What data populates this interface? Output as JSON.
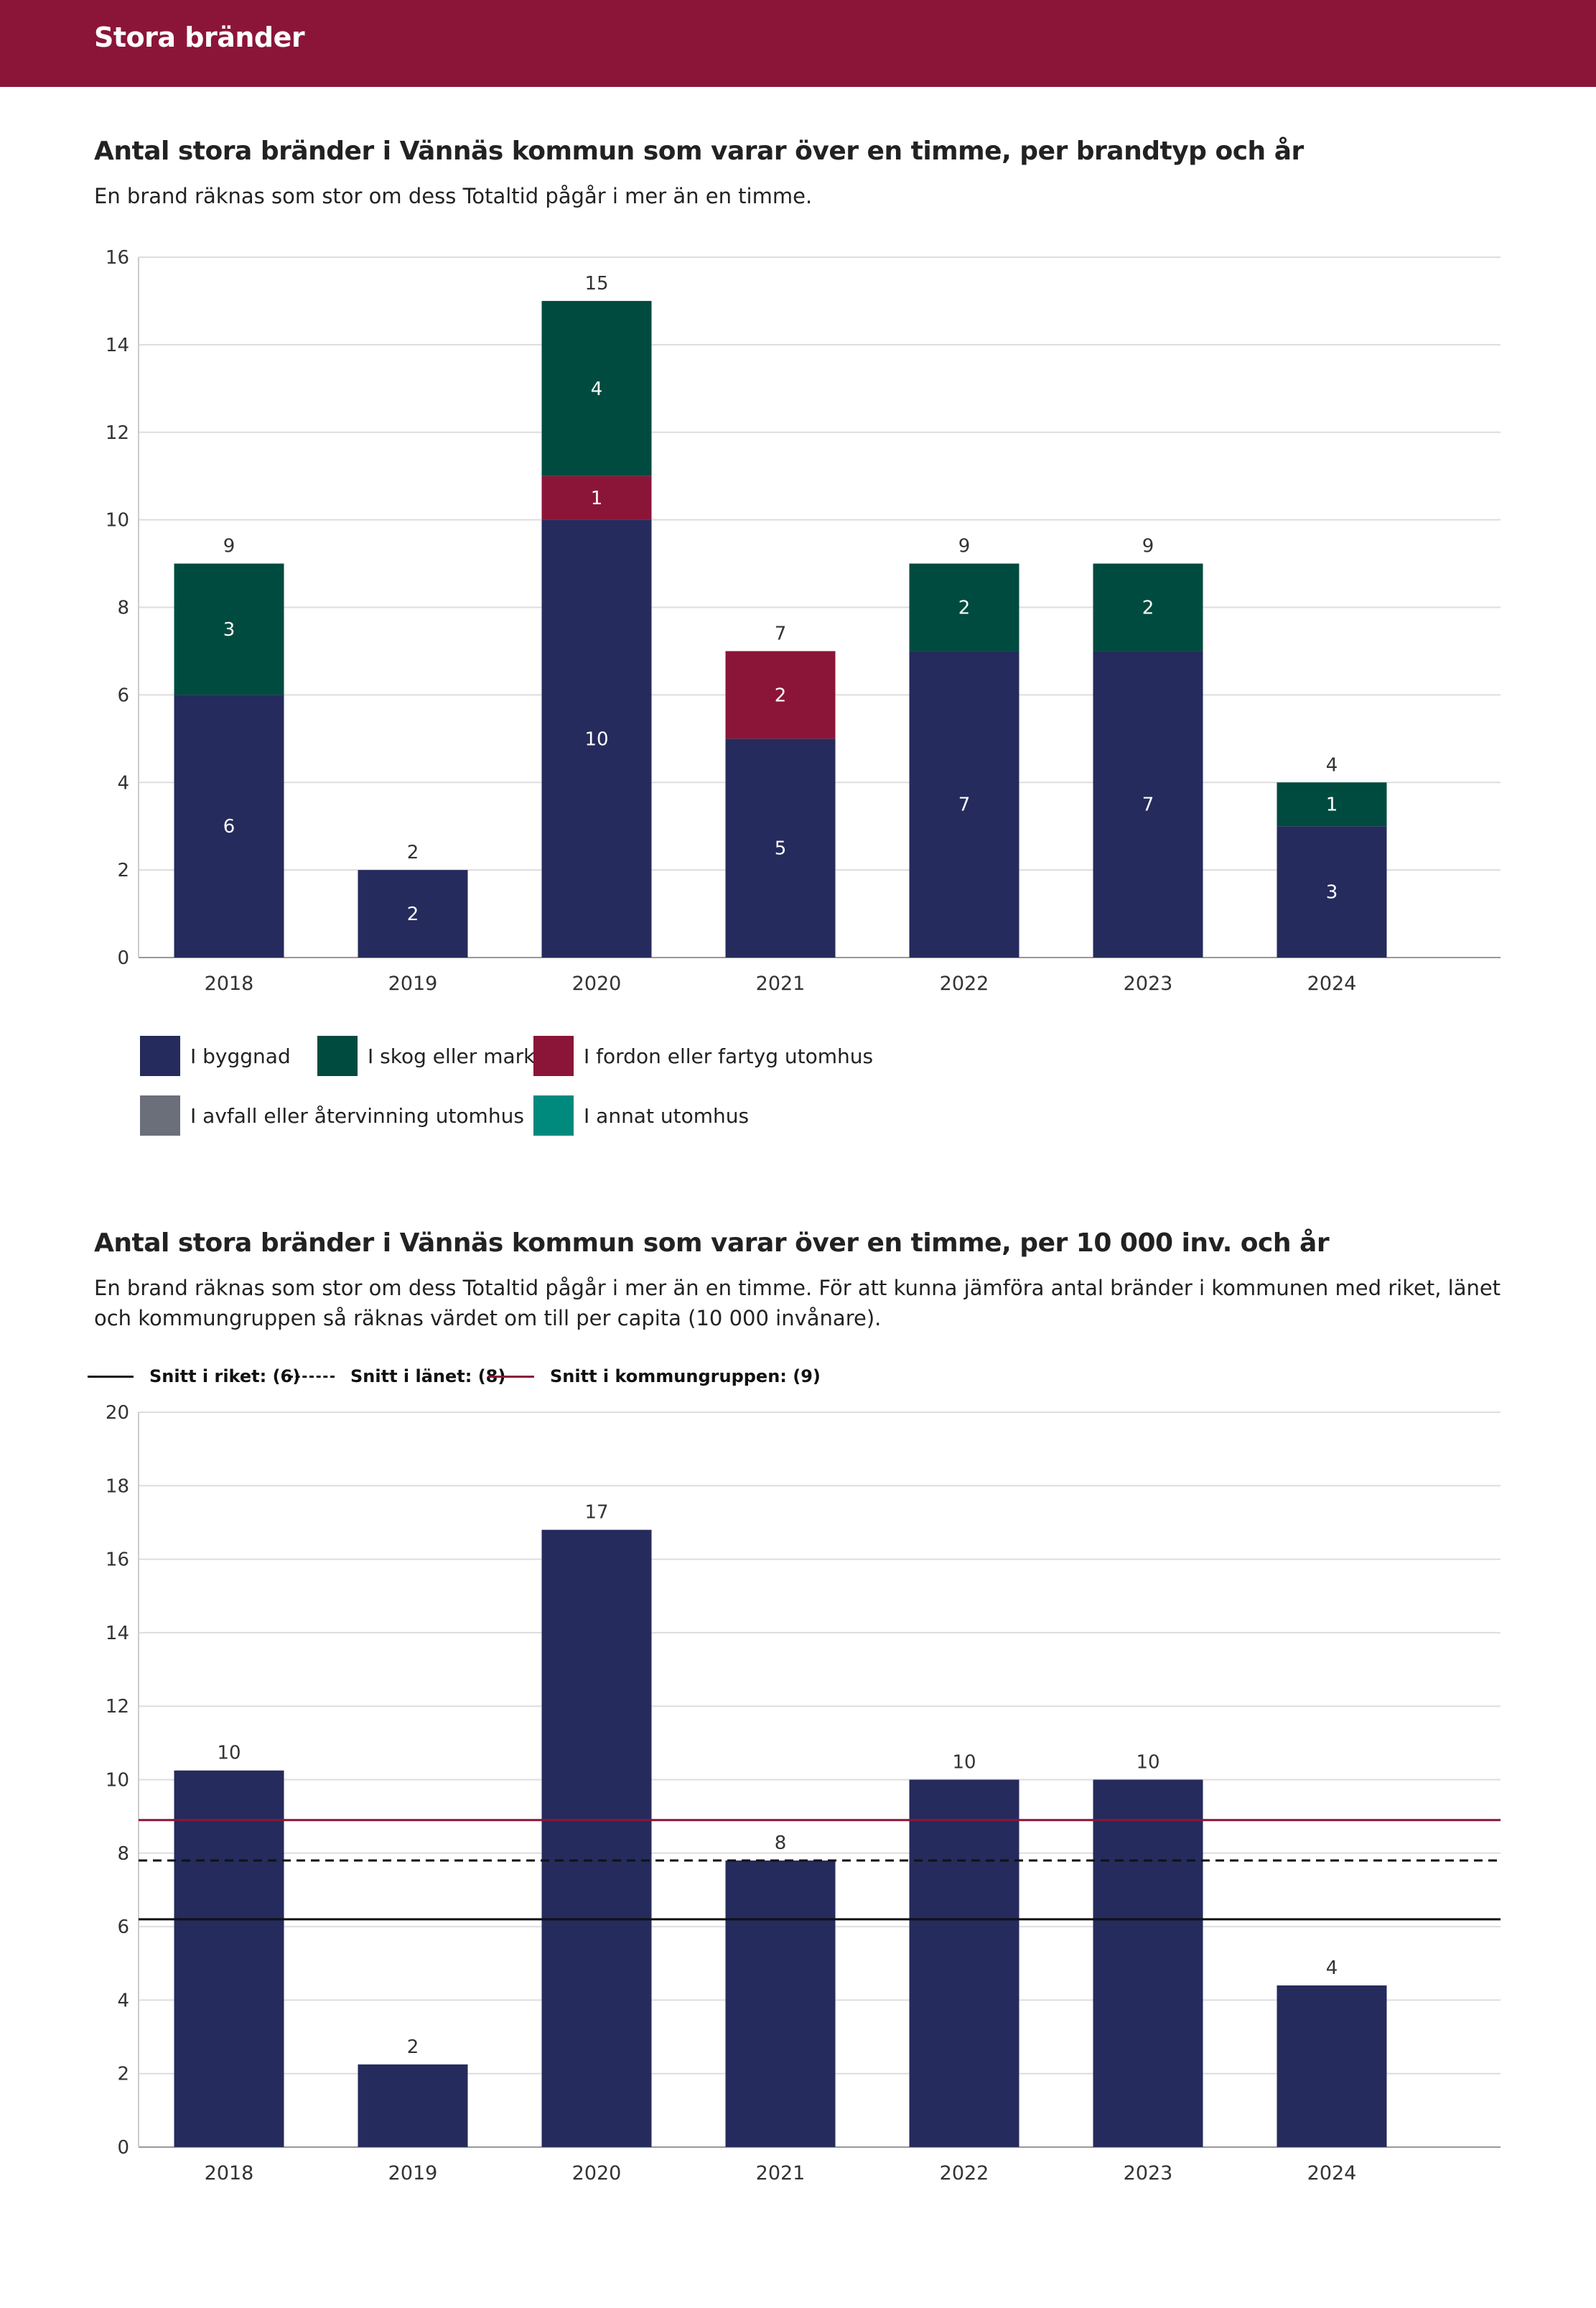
{
  "header": {
    "title": "Stora bränder"
  },
  "charts": {
    "stacked": {
      "title": "Antal stora bränder i Vännäs kommun som varar över en timme, per brandtyp och år",
      "subtitle": "En brand räknas som stor om dess Totaltid pågår i mer än en timme."
    },
    "per_capita": {
      "title": "Antal stora bränder i Vännäs kommun som varar över en timme, per 10 000 inv. och år",
      "subtitle": "En brand räknas som stor om dess Totaltid pågår i mer än en timme. För att kunna jämföra antal bränder i kommunen med riket, länet och kommungruppen så räknas värdet om till per capita (10 000 invånare)."
    }
  },
  "chart_data": [
    {
      "type": "bar",
      "stacked": true,
      "title": "Antal stora bränder i Vännäs kommun som varar över en timme, per brandtyp och år",
      "subtitle": "En brand räknas som stor om dess Totaltid pågår i mer än en timme.",
      "categories": [
        "2018",
        "2019",
        "2020",
        "2021",
        "2022",
        "2023",
        "2024"
      ],
      "series": [
        {
          "name": "I byggnad",
          "color": "#252b5c",
          "values": [
            6,
            2,
            10,
            5,
            7,
            7,
            3
          ]
        },
        {
          "name": "I fordon eller fartyg utomhus",
          "color": "#8b1538",
          "values": [
            0,
            0,
            1,
            2,
            0,
            0,
            0
          ]
        },
        {
          "name": "I skog eller mark",
          "color": "#004b3f",
          "values": [
            3,
            0,
            4,
            0,
            2,
            2,
            1
          ]
        },
        {
          "name": "I avfall eller återvinning utomhus",
          "color": "#6b6f7a",
          "values": [
            0,
            0,
            0,
            0,
            0,
            0,
            0
          ]
        },
        {
          "name": "I annat utomhus",
          "color": "#008a7e",
          "values": [
            0,
            0,
            0,
            0,
            0,
            0,
            0
          ]
        }
      ],
      "totals": [
        9,
        2,
        15,
        7,
        9,
        9,
        4
      ],
      "ylim": [
        0,
        16
      ],
      "yticks": [
        0,
        2,
        4,
        6,
        8,
        10,
        12,
        14,
        16
      ],
      "xlabel": "",
      "ylabel": "",
      "grid": true,
      "legend": {
        "placement": "bottom",
        "entries": [
          {
            "name": "I byggnad",
            "color": "#252b5c"
          },
          {
            "name": "I skog eller mark",
            "color": "#004b3f"
          },
          {
            "name": "I fordon eller fartyg utomhus",
            "color": "#8b1538"
          },
          {
            "name": "I avfall eller återvinning utomhus",
            "color": "#6b6f7a"
          },
          {
            "name": "I annat utomhus",
            "color": "#008a7e"
          }
        ]
      }
    },
    {
      "type": "bar",
      "title": "Antal stora bränder i Vännäs kommun som varar över en timme, per 10 000 inv. och år",
      "subtitle": "En brand räknas som stor om dess Totaltid pågår i mer än en timme. För att kunna jämföra antal bränder i kommunen med riket, länet och kommungruppen så räknas värdet om till per capita (10 000 invånare).",
      "categories": [
        "2018",
        "2019",
        "2020",
        "2021",
        "2022",
        "2023",
        "2024"
      ],
      "values": [
        10.25,
        2.25,
        16.8,
        7.8,
        10.0,
        10.0,
        4.4
      ],
      "labels": [
        "10",
        "2",
        "17",
        "8",
        "10",
        "10",
        "4"
      ],
      "bar_color": "#252b5c",
      "ylim": [
        0,
        20
      ],
      "yticks": [
        0,
        2,
        4,
        6,
        8,
        10,
        12,
        14,
        16,
        18,
        20
      ],
      "xlabel": "",
      "ylabel": "",
      "grid": true,
      "reference_lines": [
        {
          "name": "Snitt i riket: (6)",
          "value": 6.2,
          "style": "solid",
          "color": "#111111"
        },
        {
          "name": "Snitt i länet: (8)",
          "value": 7.8,
          "style": "dashed",
          "color": "#111111"
        },
        {
          "name": "Snitt i kommungruppen: (9)",
          "value": 8.9,
          "style": "solid",
          "color": "#8b1538"
        }
      ],
      "legend": {
        "placement": "top-left"
      }
    }
  ]
}
